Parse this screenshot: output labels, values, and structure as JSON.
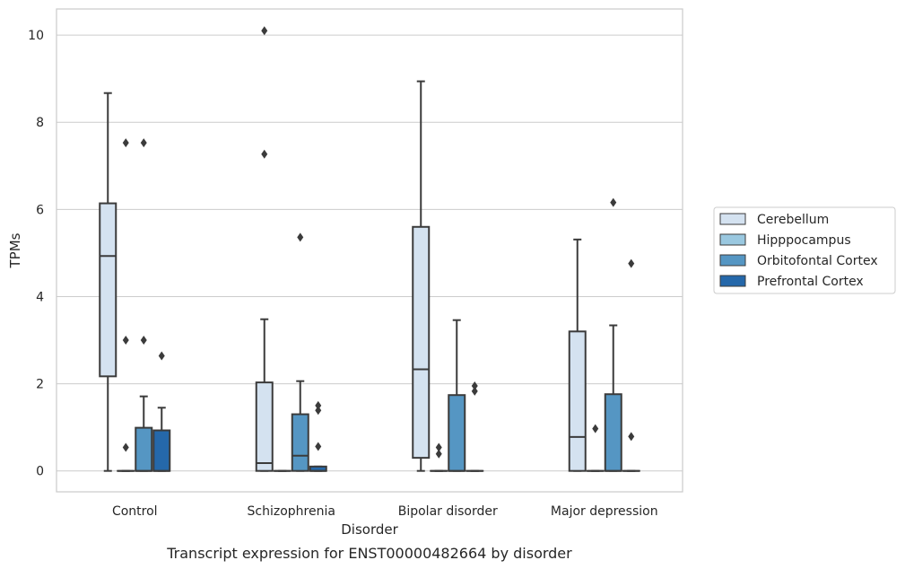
{
  "chart_data": {
    "type": "box",
    "title": "",
    "xlabel": "Disorder",
    "ylabel": "TPMs",
    "caption": "Transcript expression for ENST00000482664 by disorder",
    "ylim": [
      -0.48,
      10.6
    ],
    "yticks": [
      0,
      2,
      4,
      6,
      8,
      10
    ],
    "grid": "horizontal",
    "legend_position": "right",
    "categories": [
      "Control",
      "Schizophrenia",
      "Bipolar disorder",
      "Major depression"
    ],
    "series": [
      {
        "name": "Cerebellum",
        "color": "#d4e2f0",
        "boxes": [
          {
            "whislo": 0.0,
            "q1": 2.17,
            "med": 4.93,
            "q3": 6.14,
            "whishi": 8.67,
            "fliers": []
          },
          {
            "whislo": 0.0,
            "q1": 0.0,
            "med": 0.18,
            "q3": 2.03,
            "whishi": 3.48,
            "fliers": [
              7.27,
              10.1
            ]
          },
          {
            "whislo": 0.0,
            "q1": 0.3,
            "med": 2.33,
            "q3": 5.6,
            "whishi": 8.94,
            "fliers": []
          },
          {
            "whislo": 0.0,
            "q1": 0.0,
            "med": 0.78,
            "q3": 3.2,
            "whishi": 5.31,
            "fliers": []
          }
        ]
      },
      {
        "name": "Hipppocampus",
        "color": "#9ac8e0",
        "boxes": [
          {
            "whislo": 0.0,
            "q1": 0.0,
            "med": 0.0,
            "q3": 0.0,
            "whishi": 0.0,
            "fliers": [
              0.54,
              3.0,
              7.53
            ]
          },
          {
            "whislo": 0.0,
            "q1": 0.0,
            "med": 0.0,
            "q3": 0.0,
            "whishi": 0.0,
            "fliers": []
          },
          {
            "whislo": 0.0,
            "q1": 0.0,
            "med": 0.0,
            "q3": 0.0,
            "whishi": 0.0,
            "fliers": [
              0.39,
              0.54
            ]
          },
          {
            "whislo": 0.0,
            "q1": 0.0,
            "med": 0.0,
            "q3": 0.0,
            "whishi": 0.0,
            "fliers": [
              0.97
            ]
          }
        ]
      },
      {
        "name": "Orbitofontal Cortex",
        "color": "#5596c3",
        "boxes": [
          {
            "whislo": 0.0,
            "q1": 0.0,
            "med": 0.0,
            "q3": 0.99,
            "whishi": 1.71,
            "fliers": [
              3.0,
              7.53
            ]
          },
          {
            "whislo": 0.0,
            "q1": 0.0,
            "med": 0.35,
            "q3": 1.3,
            "whishi": 2.06,
            "fliers": [
              5.36
            ]
          },
          {
            "whislo": 0.0,
            "q1": 0.0,
            "med": 0.0,
            "q3": 1.74,
            "whishi": 3.46,
            "fliers": []
          },
          {
            "whislo": 0.0,
            "q1": 0.0,
            "med": 0.0,
            "q3": 1.76,
            "whishi": 3.34,
            "fliers": [
              6.16
            ]
          }
        ]
      },
      {
        "name": "Prefrontal Cortex",
        "color": "#2568aa",
        "boxes": [
          {
            "whislo": 0.0,
            "q1": 0.0,
            "med": 0.0,
            "q3": 0.93,
            "whishi": 1.45,
            "fliers": [
              2.64
            ]
          },
          {
            "whislo": 0.0,
            "q1": 0.0,
            "med": 0.0,
            "q3": 0.1,
            "whishi": 0.1,
            "fliers": [
              0.56,
              1.39,
              1.5
            ]
          },
          {
            "whislo": 0.0,
            "q1": 0.0,
            "med": 0.0,
            "q3": 0.0,
            "whishi": 0.0,
            "fliers": [
              1.83,
              1.95
            ]
          },
          {
            "whislo": 0.0,
            "q1": 0.0,
            "med": 0.0,
            "q3": 0.0,
            "whishi": 0.0,
            "fliers": [
              0.79,
              4.76
            ]
          }
        ]
      }
    ]
  }
}
